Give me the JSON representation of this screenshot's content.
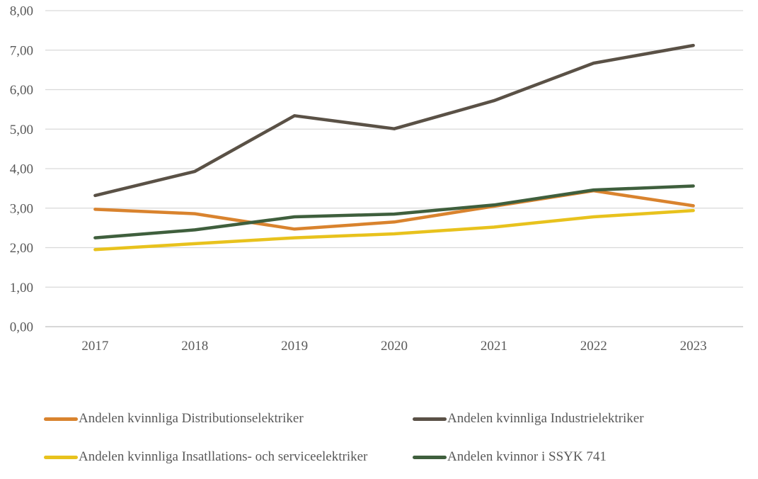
{
  "page": {
    "background": "#FFFFFF"
  },
  "chart_data": {
    "type": "line",
    "title": "",
    "xlabel": "",
    "ylabel": "",
    "categories": [
      "2017",
      "2018",
      "2019",
      "2020",
      "2021",
      "2022",
      "2023"
    ],
    "series": [
      {
        "name": "Andelen kvinnliga Distributionselektriker",
        "color": "#D9832E",
        "values": [
          2.97,
          2.86,
          2.47,
          2.65,
          3.05,
          3.44,
          3.06
        ]
      },
      {
        "name": "Andelen kvinnliga Industrielektriker",
        "color": "#5A5146",
        "values": [
          3.32,
          3.93,
          5.34,
          5.01,
          5.72,
          6.67,
          7.12
        ]
      },
      {
        "name": "Andelen kvinnliga Insatllations- och serviceelektriker",
        "color": "#E8C21D",
        "values": [
          1.95,
          2.1,
          2.25,
          2.35,
          2.52,
          2.78,
          2.94
        ]
      },
      {
        "name": "Andelen kvinnor i SSYK 741",
        "color": "#3F5F3D",
        "values": [
          2.25,
          2.45,
          2.78,
          2.85,
          3.08,
          3.46,
          3.56
        ]
      }
    ],
    "ylim": [
      0,
      8
    ],
    "y_ticks": [
      {
        "value": 8,
        "label": "8,00"
      },
      {
        "value": 7,
        "label": "7,00"
      },
      {
        "value": 6,
        "label": "6,00"
      },
      {
        "value": 5,
        "label": "5,00"
      },
      {
        "value": 4,
        "label": "4,00"
      },
      {
        "value": 3,
        "label": "3,00"
      },
      {
        "value": 2,
        "label": "2,00"
      },
      {
        "value": 1,
        "label": "1,00"
      },
      {
        "value": 0,
        "label": "0,00"
      }
    ],
    "grid": true,
    "legend_position": "bottom",
    "colors": {
      "gridline": "#D9D9D9",
      "axis_line": "#BFBFBF",
      "tick_text": "#595959",
      "legend_text": "#595959"
    }
  }
}
